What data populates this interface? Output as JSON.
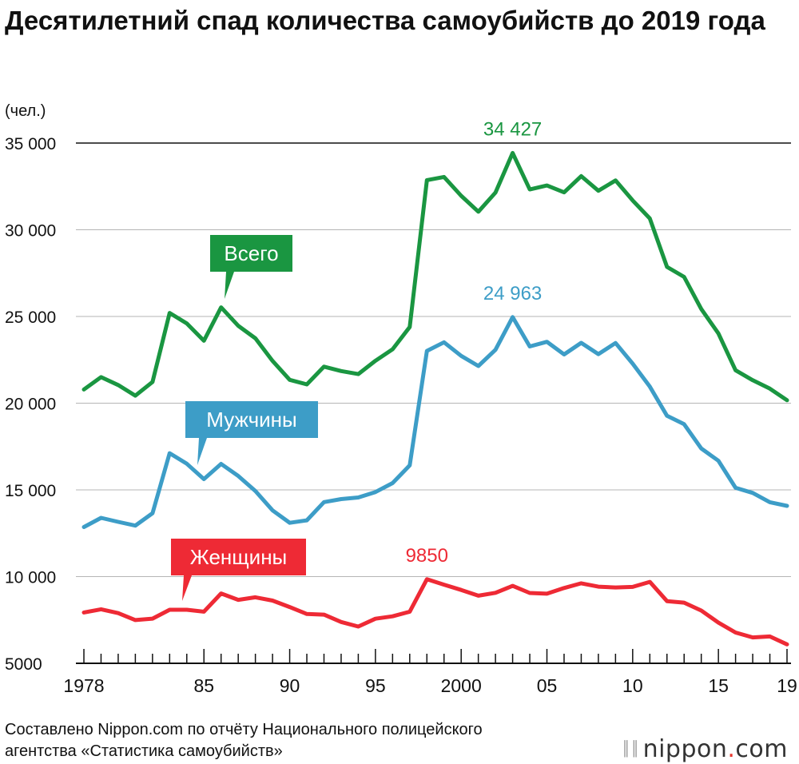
{
  "title": "Десятилетний спад количества самоубийств до 2019 года",
  "unit_label": "(чел.)",
  "source": {
    "line1": "Составлено Nippon.com по отчёту Национального полицейского",
    "line2": "агентства «Статистика самоубийств»"
  },
  "logo": {
    "name": "nippon",
    "dot": ".",
    "suffix": "com"
  },
  "colors": {
    "total": "#1a9641",
    "men": "#3d9dc7",
    "women": "#ee2a35"
  },
  "chart_data": {
    "type": "line",
    "x": [
      1978,
      1979,
      1980,
      1981,
      1982,
      1983,
      1984,
      1985,
      1986,
      1987,
      1988,
      1989,
      1990,
      1991,
      1992,
      1993,
      1994,
      1995,
      1996,
      1997,
      1998,
      1999,
      2000,
      2001,
      2002,
      2003,
      2004,
      2005,
      2006,
      2007,
      2008,
      2009,
      2010,
      2011,
      2012,
      2013,
      2014,
      2015,
      2016,
      2017,
      2018,
      2019
    ],
    "x_tick_values": [
      1978,
      1985,
      1990,
      1995,
      2000,
      2005,
      2010,
      2015,
      2019
    ],
    "x_tick_labels": [
      "1978",
      "85",
      "90",
      "95",
      "2000",
      "05",
      "10",
      "15",
      "19"
    ],
    "ylim": [
      5000,
      35000
    ],
    "y_ticks": [
      5000,
      10000,
      15000,
      20000,
      25000,
      30000,
      35000
    ],
    "y_tick_labels": [
      "5000",
      "10 000",
      "15 000",
      "20 000",
      "25 000",
      "30 000",
      "35 000"
    ],
    "series": [
      {
        "name": "Всего",
        "key": "total",
        "values": [
          20788,
          21503,
          21048,
          20434,
          21228,
          25202,
          24596,
          23599,
          25524,
          24460,
          23742,
          22436,
          21346,
          21084,
          22104,
          21851,
          21679,
          22445,
          23104,
          24391,
          32863,
          33048,
          31957,
          31042,
          32143,
          34427,
          32325,
          32552,
          32155,
          33093,
          32249,
          32845,
          31690,
          30651,
          27858,
          27283,
          25427,
          24025,
          21897,
          21321,
          20840,
          20169
        ],
        "annotation": {
          "x": 2003,
          "label": "34 427"
        }
      },
      {
        "name": "Мужчины",
        "key": "men",
        "values": [
          12859,
          13386,
          13155,
          12942,
          13654,
          17116,
          16508,
          15624,
          16497,
          15802,
          14934,
          13818,
          13102,
          13242,
          14296,
          14468,
          14560,
          14874,
          15393,
          16416,
          23013,
          23512,
          22727,
          22144,
          23080,
          24963,
          23272,
          23540,
          22813,
          23478,
          22831,
          23472,
          22283,
          20955,
          19273,
          18787,
          17386,
          16681,
          15121,
          14826,
          14290,
          14078
        ],
        "annotation": {
          "x": 2003,
          "label": "24 963"
        }
      },
      {
        "name": "Женщины",
        "key": "women",
        "values": [
          7929,
          8117,
          7893,
          7492,
          7574,
          8086,
          8088,
          7975,
          9027,
          8658,
          8808,
          8618,
          8244,
          7842,
          7808,
          7383,
          7119,
          7571,
          7711,
          7975,
          9850,
          9536,
          9230,
          8898,
          9063,
          9464,
          9053,
          9012,
          9342,
          9615,
          9418,
          9373,
          9407,
          9696,
          8585,
          8496,
          8041,
          7344,
          6776,
          6495,
          6550,
          6091
        ],
        "annotation": {
          "x": 1998,
          "label": "9850"
        }
      }
    ],
    "legend_callouts": [
      {
        "series": "total",
        "label": "Всего",
        "anchor_x": 1986
      },
      {
        "series": "men",
        "label": "Мужчины",
        "anchor_x": 1984
      },
      {
        "series": "women",
        "label": "Женщины",
        "anchor_x": 1984
      }
    ],
    "grid": true
  }
}
